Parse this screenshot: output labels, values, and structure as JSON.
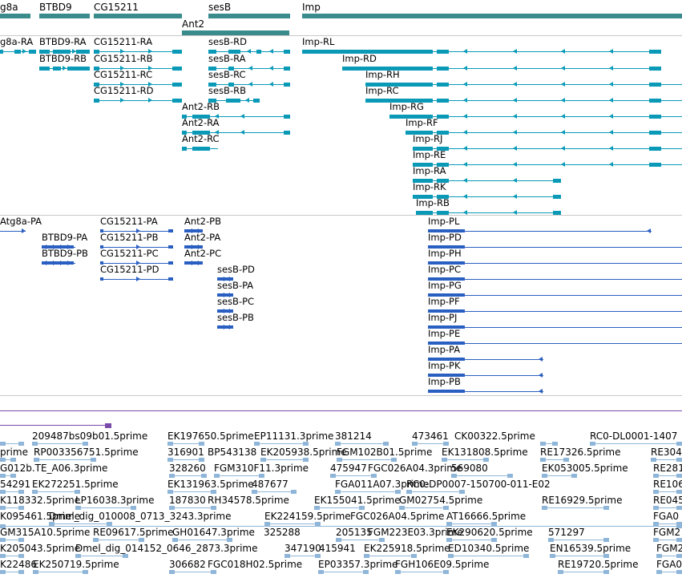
{
  "colors": {
    "gene": "#3a8c8c",
    "transcript": "#0a9ab8",
    "protein": "#2a5fc2",
    "est": "#8fb6d8",
    "purple": "#7a4aa8",
    "separator": "#c8c8c8"
  },
  "genes": [
    {
      "label": "g8a"
    },
    {
      "label": "BTBD9"
    },
    {
      "label": "CG15211"
    },
    {
      "label": "sesB"
    },
    {
      "label": "Imp"
    },
    {
      "label": "Ant2"
    }
  ],
  "transcripts": [
    {
      "label": "g8a-RA"
    },
    {
      "label": "BTBD9-RA"
    },
    {
      "label": "BTBD9-RB"
    },
    {
      "label": "CG15211-RA"
    },
    {
      "label": "CG15211-RB"
    },
    {
      "label": "CG15211-RC"
    },
    {
      "label": "CG15211-RD"
    },
    {
      "label": "sesB-RD"
    },
    {
      "label": "sesB-RA"
    },
    {
      "label": "sesB-RC"
    },
    {
      "label": "sesB-RB"
    },
    {
      "label": "Ant2-RB"
    },
    {
      "label": "Ant2-RA"
    },
    {
      "label": "Ant2-RC"
    },
    {
      "label": "Imp-RL"
    },
    {
      "label": "Imp-RD"
    },
    {
      "label": "Imp-RH"
    },
    {
      "label": "Imp-RC"
    },
    {
      "label": "Imp-RG"
    },
    {
      "label": "Imp-RF"
    },
    {
      "label": "Imp-RJ"
    },
    {
      "label": "Imp-RE"
    },
    {
      "label": "Imp-RA"
    },
    {
      "label": "Imp-RK"
    },
    {
      "label": "Imp-RB"
    }
  ],
  "proteins": [
    {
      "label": "Atg8a-PA"
    },
    {
      "label": "BTBD9-PA"
    },
    {
      "label": "BTBD9-PB"
    },
    {
      "label": "CG15211-PA"
    },
    {
      "label": "CG15211-PB"
    },
    {
      "label": "CG15211-PC"
    },
    {
      "label": "CG15211-PD"
    },
    {
      "label": "Ant2-PB"
    },
    {
      "label": "Ant2-PA"
    },
    {
      "label": "Ant2-PC"
    },
    {
      "label": "sesB-PD"
    },
    {
      "label": "sesB-PA"
    },
    {
      "label": "sesB-PC"
    },
    {
      "label": "sesB-PB"
    },
    {
      "label": "Imp-PL"
    },
    {
      "label": "Imp-PD"
    },
    {
      "label": "Imp-PH"
    },
    {
      "label": "Imp-PC"
    },
    {
      "label": "Imp-PG"
    },
    {
      "label": "Imp-PF"
    },
    {
      "label": "Imp-PJ"
    },
    {
      "label": "Imp-PE"
    },
    {
      "label": "Imp-PA"
    },
    {
      "label": "Imp-PK"
    },
    {
      "label": "Imp-PB"
    }
  ],
  "ests": [
    {
      "label": "209487bs09b01.5prime"
    },
    {
      "label": "EK197650.5prime"
    },
    {
      "label": "EP11131.3prime"
    },
    {
      "label": "381214"
    },
    {
      "label": "473461"
    },
    {
      "label": "CK00322.5prime"
    },
    {
      "label": "RC0-DL0001-1407"
    },
    {
      "label": "prime"
    },
    {
      "label": "RP003356751.5prime"
    },
    {
      "label": "316901"
    },
    {
      "label": "BP543138"
    },
    {
      "label": "EK205938.5prime"
    },
    {
      "label": "FGM102B01.5prime"
    },
    {
      "label": "EK131808.5prime"
    },
    {
      "label": "RE17326.5prime"
    },
    {
      "label": "RE304"
    },
    {
      "label": "G012b.TE_A06.3prime"
    },
    {
      "label": "328260"
    },
    {
      "label": "FGM310F11.3prime"
    },
    {
      "label": "475947"
    },
    {
      "label": "FGC026A04.3prime"
    },
    {
      "label": "569080"
    },
    {
      "label": "EK053005.5prime"
    },
    {
      "label": "RE281"
    },
    {
      "label": "54291"
    },
    {
      "label": "EK272251.5prime"
    },
    {
      "label": "EK131963.5prime"
    },
    {
      "label": "487677"
    },
    {
      "label": "FGA011A07.3prime"
    },
    {
      "label": "RC0-DP0007-150700-011-E02"
    },
    {
      "label": "RE106"
    },
    {
      "label": "K118332.5prime"
    },
    {
      "label": "LP16038.3prime"
    },
    {
      "label": "187830"
    },
    {
      "label": "RH34578.5prime"
    },
    {
      "label": "EK155041.5prime"
    },
    {
      "label": "GM02754.5prime"
    },
    {
      "label": "RE16929.5prime"
    },
    {
      "label": "RE045"
    },
    {
      "label": "K095461.5prime"
    },
    {
      "label": "Dmel_dig_010008_0713_3243.3prime"
    },
    {
      "label": "EK224159.5prime"
    },
    {
      "label": "FGC026A04.5prime"
    },
    {
      "label": "AT16666.5prime"
    },
    {
      "label": "FGA0"
    },
    {
      "label": "GM315A10.5prime"
    },
    {
      "label": "RE09617.5prime"
    },
    {
      "label": "GH01647.3prime"
    },
    {
      "label": "325288"
    },
    {
      "label": "205135"
    },
    {
      "label": "FGM223E03.3prime"
    },
    {
      "label": "EK290620.5prime"
    },
    {
      "label": "571297"
    },
    {
      "label": "FGM2"
    },
    {
      "label": "K205043.5prime"
    },
    {
      "label": "Dmel_dig_014152_0646_2873.3prime"
    },
    {
      "label": "347190"
    },
    {
      "label": "415941"
    },
    {
      "label": "EK225918.5prime"
    },
    {
      "label": "ED10340.5prime"
    },
    {
      "label": "EN16539.5prime"
    },
    {
      "label": "FGM2"
    },
    {
      "label": "K22486"
    },
    {
      "label": "EK250719.5prime"
    },
    {
      "label": "306682"
    },
    {
      "label": "FGC018H02.5prime"
    },
    {
      "label": "EP03357.3prime"
    },
    {
      "label": "FGH106E09.5prime"
    },
    {
      "label": "RE19720.5prime"
    },
    {
      "label": "FGA0"
    }
  ]
}
